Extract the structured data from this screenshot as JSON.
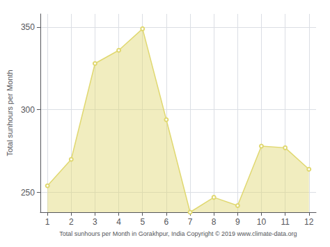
{
  "chart_data": {
    "type": "area",
    "x": [
      1,
      2,
      3,
      4,
      5,
      6,
      7,
      8,
      9,
      10,
      11,
      12
    ],
    "values": [
      254,
      270,
      328,
      336,
      349,
      294,
      238,
      247,
      242,
      278,
      277,
      264
    ],
    "xlabel": "Total sunhours per Month in Gorakhpur, India Copyright © 2019 www.climate-data.org",
    "ylabel": "Total sunhours per Month",
    "xlim": [
      0.7,
      12.3
    ],
    "ylim": [
      238,
      358
    ],
    "xticks": [
      1,
      2,
      3,
      4,
      5,
      6,
      7,
      8,
      9,
      10,
      11,
      12
    ],
    "yticks": [
      250,
      300,
      350
    ],
    "grid": true,
    "color": "#e0d870",
    "marker": "circle"
  }
}
